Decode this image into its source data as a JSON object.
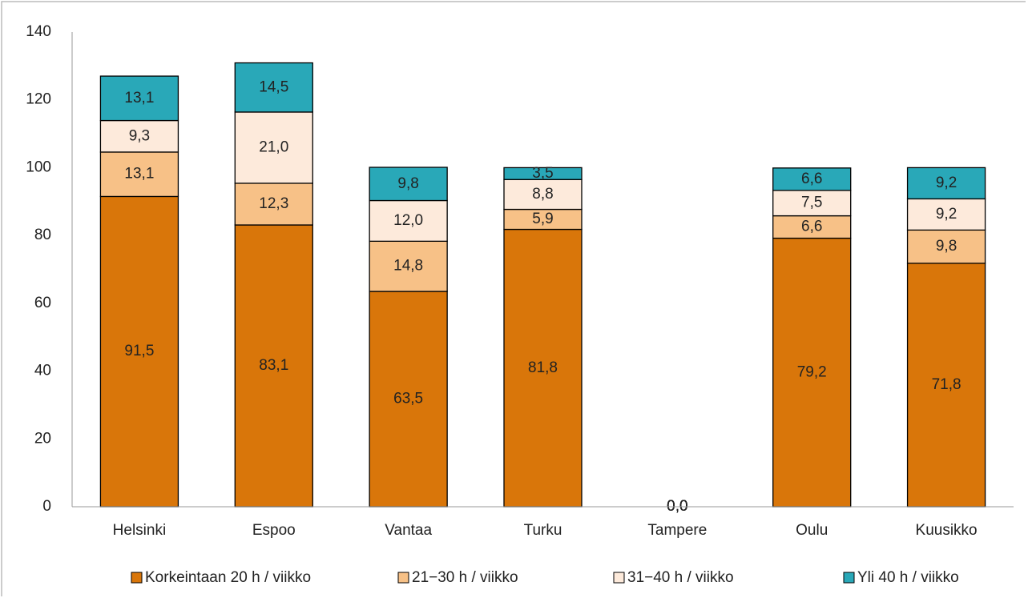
{
  "chart_data": {
    "type": "bar",
    "stacked": true,
    "categories": [
      "Helsinki",
      "Espoo",
      "Vantaa",
      "Turku",
      "Tampere",
      "Oulu",
      "Kuusikko"
    ],
    "series": [
      {
        "name": "Korkeintaan 20 h / viikko",
        "color": "#d9760a",
        "values": [
          91.5,
          83.1,
          63.5,
          81.8,
          0,
          79.2,
          71.8
        ],
        "value_labels": [
          "91,5",
          "83,1",
          "63,5",
          "81,8",
          "0,0",
          "79,2",
          "71,8"
        ]
      },
      {
        "name": "21−30 h / viikko",
        "color": "#f7c187",
        "values": [
          13.1,
          12.3,
          14.8,
          5.9,
          0,
          6.6,
          9.8
        ],
        "value_labels": [
          "13,1",
          "12,3",
          "14,8",
          "5,9",
          "0,0",
          "6,6",
          "9,8"
        ]
      },
      {
        "name": "31−40 h / viikko",
        "color": "#fdeadb",
        "values": [
          9.3,
          21.0,
          12.0,
          8.8,
          0,
          7.5,
          9.2
        ],
        "value_labels": [
          "9,3",
          "21,0",
          "12,0",
          "8,8",
          "0,0",
          "7,5",
          "9,2"
        ]
      },
      {
        "name": "Yli 40 h / viikko",
        "color": "#29a8b8",
        "values": [
          13.1,
          14.5,
          9.8,
          3.5,
          0,
          6.6,
          9.2
        ],
        "value_labels": [
          "13,1",
          "14,5",
          "9,8",
          "3,5",
          "0,0",
          "6,6",
          "9,2"
        ]
      }
    ],
    "ylim": [
      0,
      140
    ],
    "yticks": [
      0,
      20,
      40,
      60,
      80,
      100,
      120,
      140
    ],
    "grid": false,
    "legend": "bottom"
  }
}
